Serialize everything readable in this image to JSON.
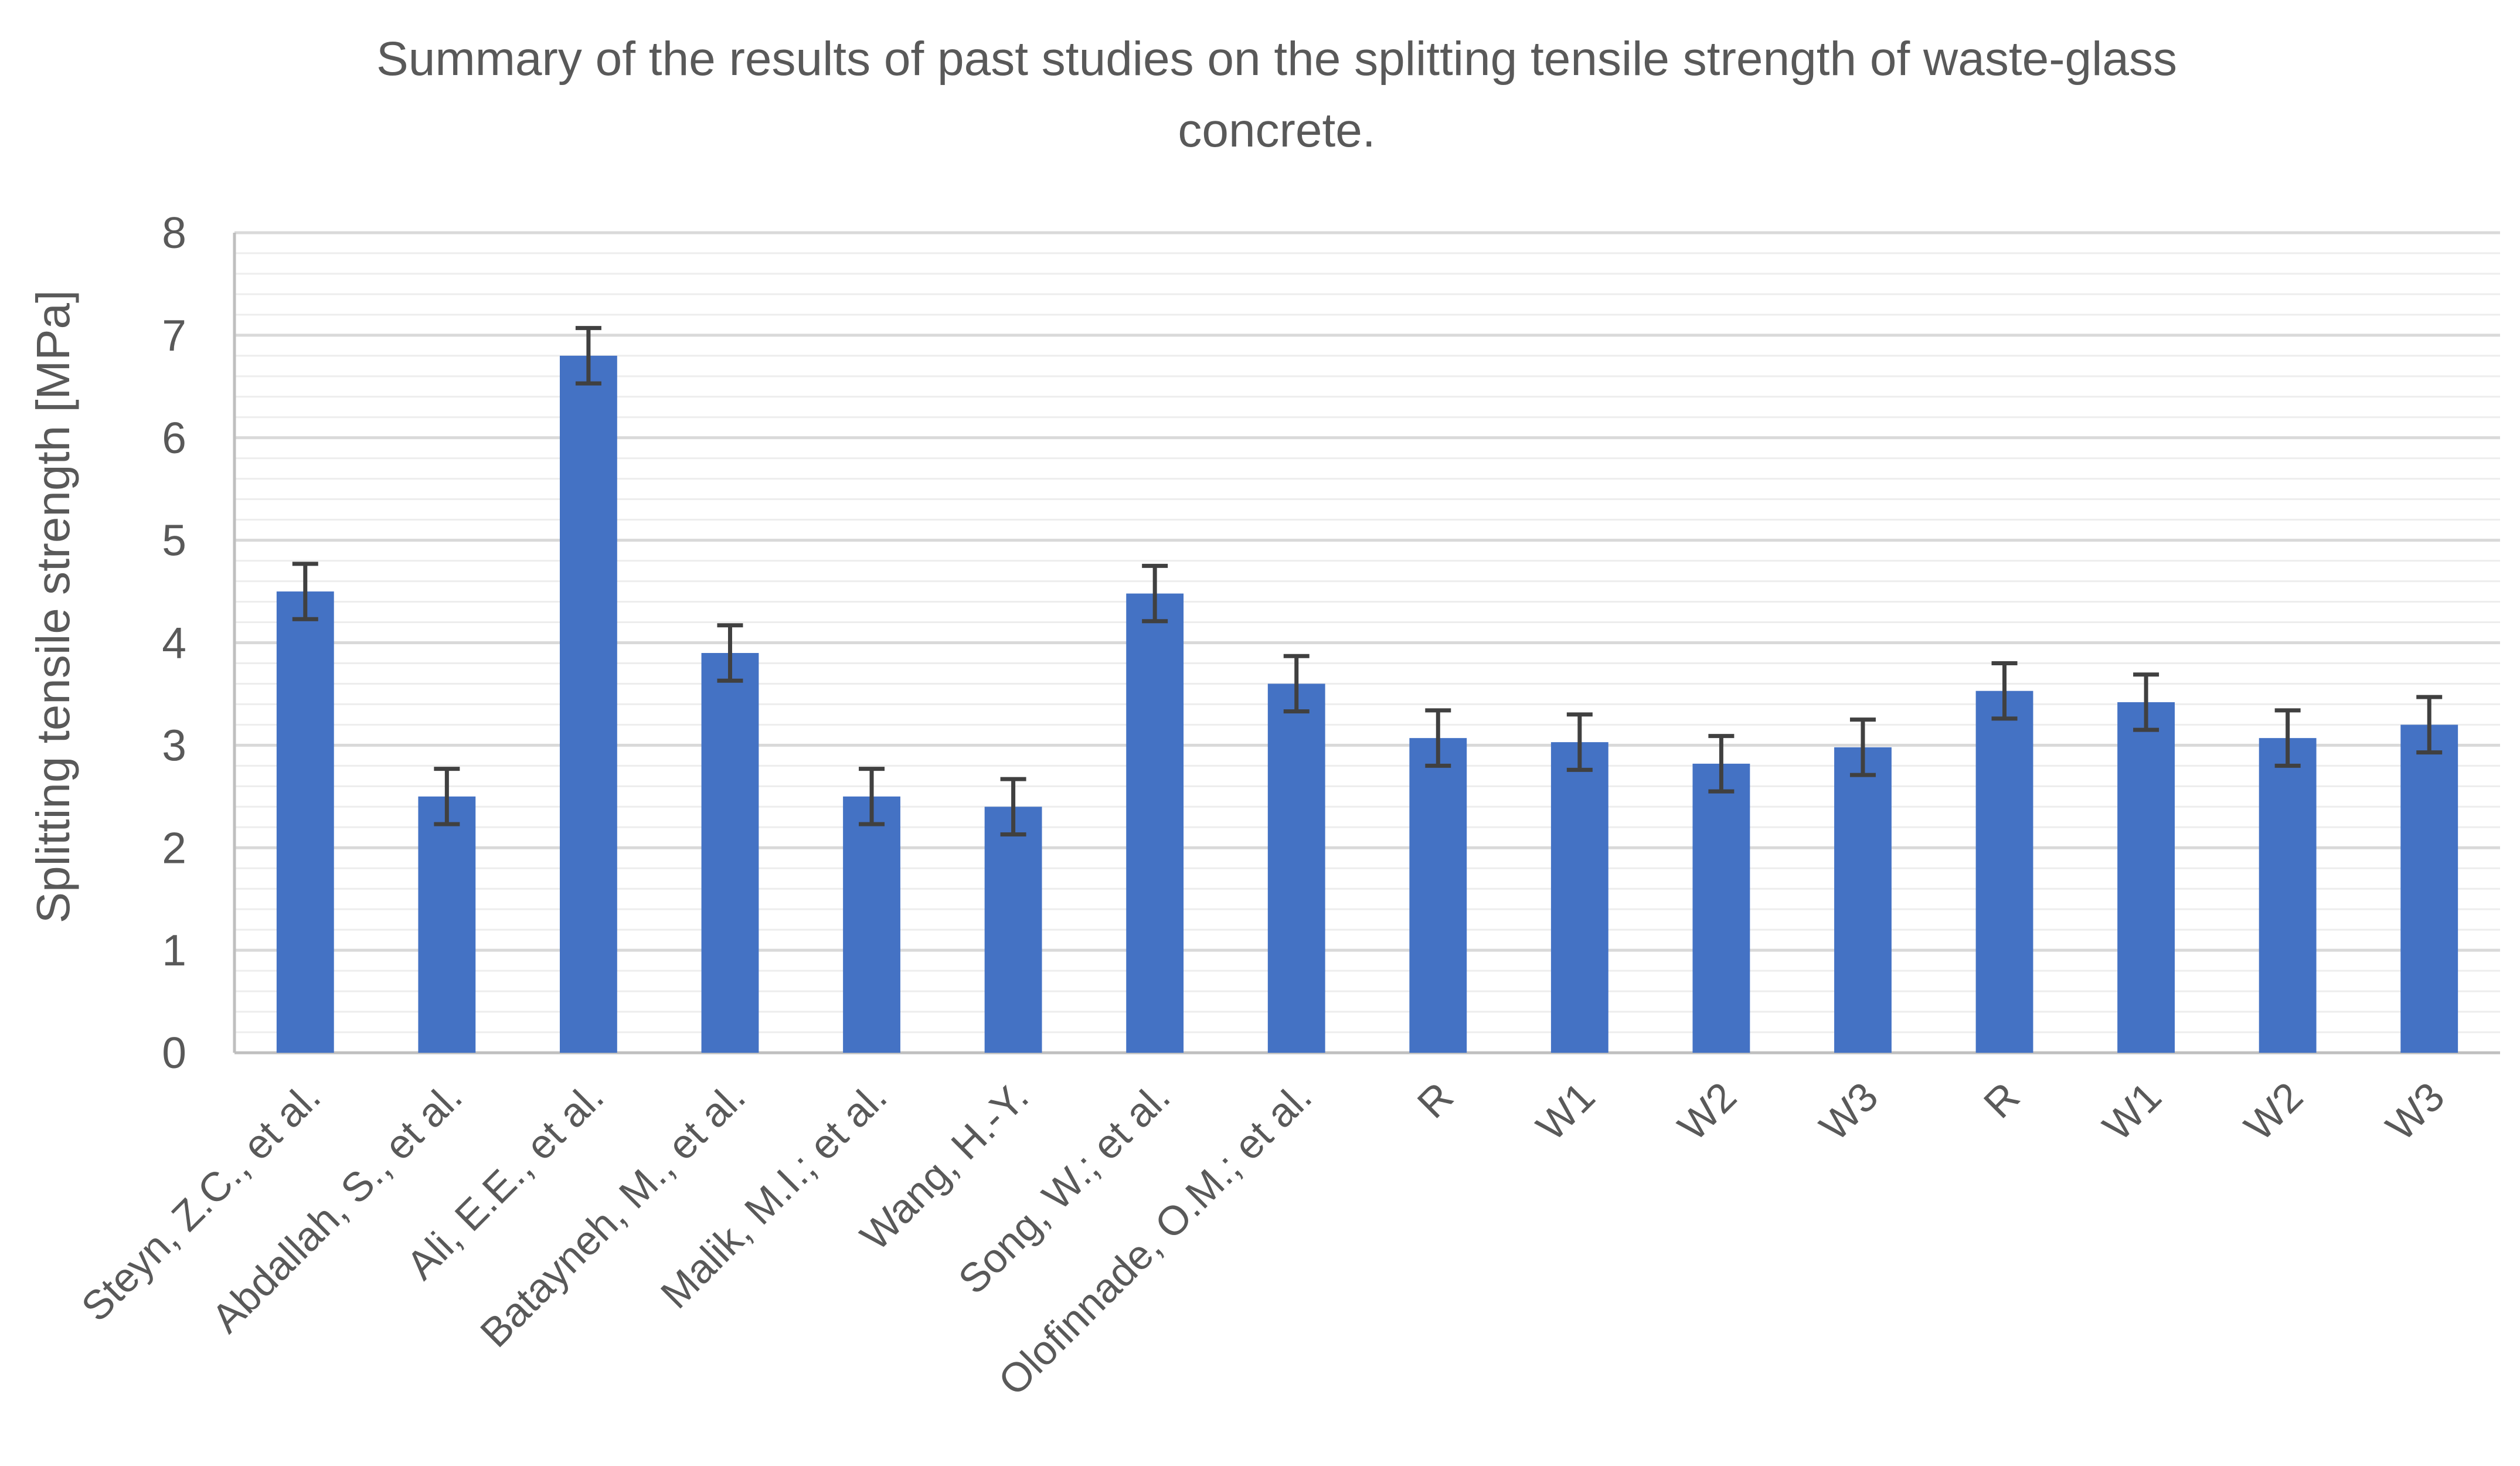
{
  "colors": {
    "bar": "#4472C4",
    "error_bar": "#404040",
    "major_grid": "#D9D9D9",
    "minor_grid": "#EDEDED",
    "axis": "#BFBFBF",
    "text": "#595959"
  },
  "chart_data": {
    "type": "bar",
    "title": "Summary of the results of past studies on the splitting tensile strength of waste-glass concrete.",
    "title_lines": [
      "Summary of the results of past studies on the splitting tensile strength of waste-glass",
      "concrete."
    ],
    "xlabel": "",
    "ylabel": "Splitting tensile strength [MPa]",
    "ylim": [
      0,
      8
    ],
    "yticks": [
      0,
      1,
      2,
      3,
      4,
      5,
      6,
      7,
      8
    ],
    "minor_step": 0.2,
    "grid": true,
    "legend": "none",
    "categories": [
      "Steyn, Z.C., et al.",
      "Abdallah, S., et al.",
      "Ali, E.E., et al.",
      "Batayneh, M., et al.",
      "Malik, M.I.; et al.",
      "Wang, H.-Y.",
      "Song, W.; et al.",
      "Olofinnade, O.M.; et al.",
      "R",
      "W1",
      "W2",
      "W3",
      "R",
      "W1",
      "W2",
      "W3"
    ],
    "values": [
      4.5,
      2.5,
      6.8,
      3.9,
      2.5,
      2.4,
      4.48,
      3.6,
      3.07,
      3.03,
      2.82,
      2.98,
      3.53,
      3.42,
      3.07,
      3.2
    ],
    "error": [
      0.27,
      0.27,
      0.27,
      0.27,
      0.27,
      0.27,
      0.27,
      0.27,
      0.27,
      0.27,
      0.27,
      0.27,
      0.27,
      0.27,
      0.27,
      0.27
    ]
  }
}
